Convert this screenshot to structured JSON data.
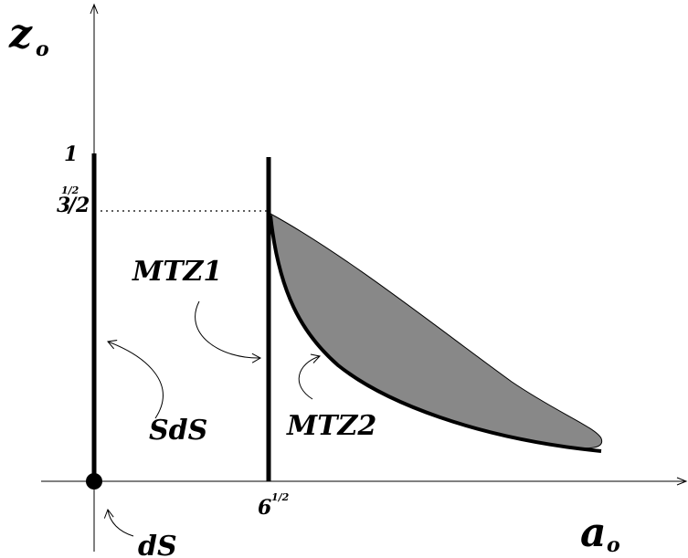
{
  "axes": {
    "y_label_main": "z",
    "y_label_sub": "o",
    "x_label_main": "a",
    "x_label_sub": "o"
  },
  "ticks": {
    "y_one": "1",
    "y_sqrt3_sup": "1/2",
    "y_sqrt3_num": "3",
    "y_sqrt3_den": "/2",
    "x_sqrt6_base": "6",
    "x_sqrt6_sup": "1/2"
  },
  "regions": {
    "mtz1": "MTZ1",
    "mtz2": "MTZ2",
    "sds": "SdS",
    "ds": "dS"
  },
  "colors": {
    "shaded_region": "#888888",
    "ink": "#000000"
  }
}
